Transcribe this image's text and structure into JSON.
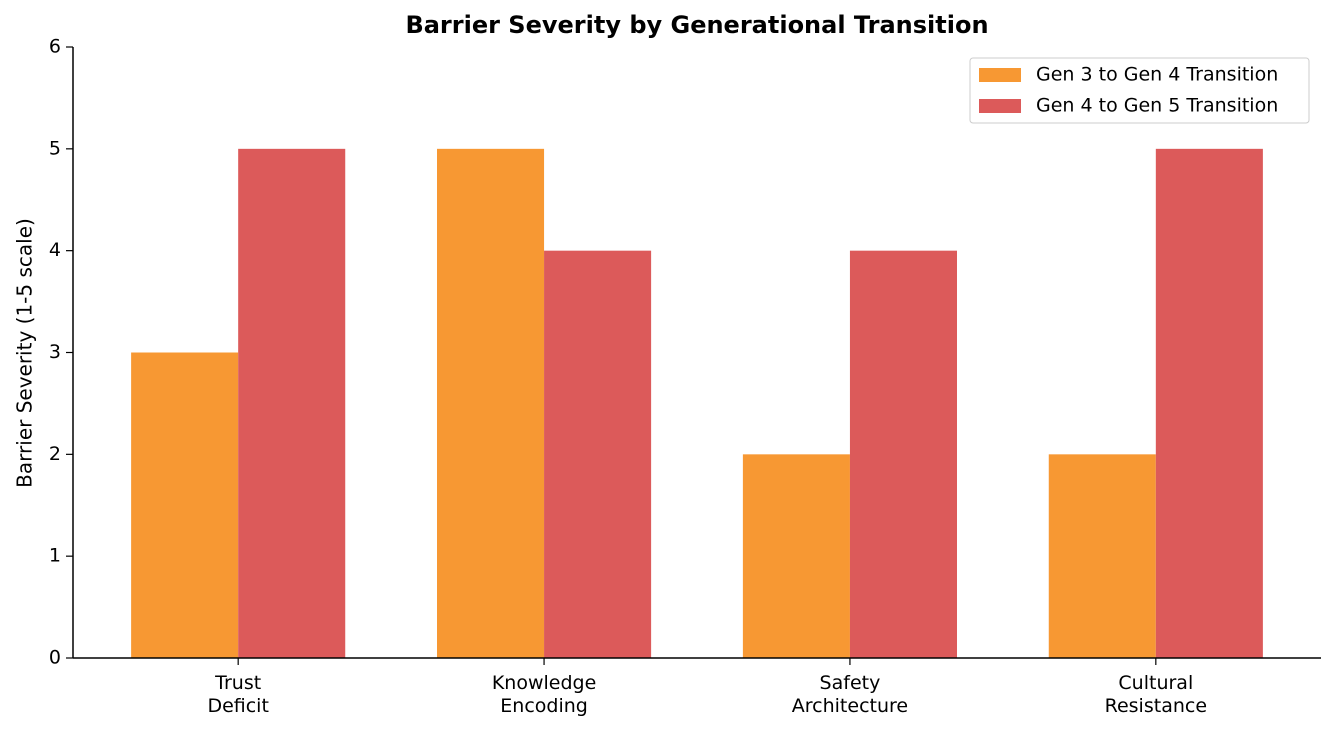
{
  "chart_data": {
    "type": "bar",
    "title": "Barrier Severity by Generational Transition",
    "y_label": "Barrier Severity (1-5 scale)",
    "categories": [
      "Trust\nDeficit",
      "Knowledge\nEncoding",
      "Safety\nArchitecture",
      "Cultural\nResistance"
    ],
    "series": [
      {
        "name": "Gen 3 to Gen 4 Transition",
        "color": "#f79833",
        "values": [
          3,
          5,
          2,
          2
        ]
      },
      {
        "name": "Gen 4 to Gen 5 Transition",
        "color": "#dc5a5a",
        "values": [
          5,
          4,
          4,
          5
        ]
      }
    ],
    "ylim": [
      0,
      6
    ],
    "yticks": [
      0,
      1,
      2,
      3,
      4,
      5,
      6
    ],
    "legend": "upper right"
  }
}
